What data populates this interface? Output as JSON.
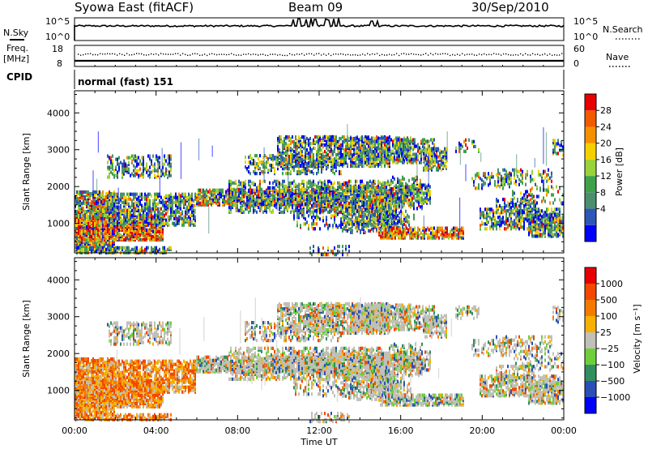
{
  "header": {
    "station": "Syowa East (fitACF)",
    "beam": "Beam 09",
    "date": "30/Sep/2010"
  },
  "chart_data": [
    {
      "type": "line",
      "name": "noise-panel",
      "left_label": "N.Sky",
      "right_label": "N.Search",
      "left_ticks": [
        "10^5",
        "10^0"
      ],
      "right_ticks": [
        "10^5",
        "10^0"
      ]
    },
    {
      "type": "scatter",
      "name": "frequency-panel",
      "left_label_1": "Freq.",
      "left_label_2": "[MHz]",
      "right_label": "Nave",
      "left_ticks": [
        "18",
        "8"
      ],
      "right_ticks": [
        "60",
        "0"
      ]
    },
    {
      "type": "table",
      "name": "cpid-panel",
      "label": "CPID",
      "mode": "normal (fast) 151"
    },
    {
      "type": "heatmap",
      "name": "power",
      "ylabel": "Slant Range [km]",
      "yticks": [
        1000,
        2000,
        3000,
        4000
      ],
      "ylim": [
        200,
        4600
      ],
      "colorbar_label": "Power [dB]",
      "colorbar_ticks": [
        "28",
        "24",
        "20",
        "16",
        "12",
        "8",
        "4"
      ],
      "colors": [
        "#0000ff",
        "#2d56b8",
        "#4c8f6e",
        "#3fa24b",
        "#9ad23a",
        "#f5d000",
        "#f59000",
        "#f25a00",
        "#e80000"
      ]
    },
    {
      "type": "heatmap",
      "name": "velocity",
      "ylabel": "Slant Range [km]",
      "yticks": [
        1000,
        2000,
        3000,
        4000
      ],
      "ylim": [
        200,
        4600
      ],
      "colorbar_label": "Velocity [m s⁻¹]",
      "colorbar_ticks": [
        "1000",
        "500",
        "100",
        "25",
        "−25",
        "−100",
        "−500",
        "−1000"
      ],
      "colors": [
        "#0000ff",
        "#2b4fb8",
        "#2f8f5e",
        "#6fcf3a",
        "#c0c0b8",
        "#f5b000",
        "#f57a00",
        "#f24800",
        "#e80000"
      ]
    }
  ],
  "time_axis": {
    "label": "Time UT",
    "ticks": [
      "00:00",
      "04:00",
      "08:00",
      "12:00",
      "16:00",
      "20:00",
      "00:00"
    ]
  }
}
